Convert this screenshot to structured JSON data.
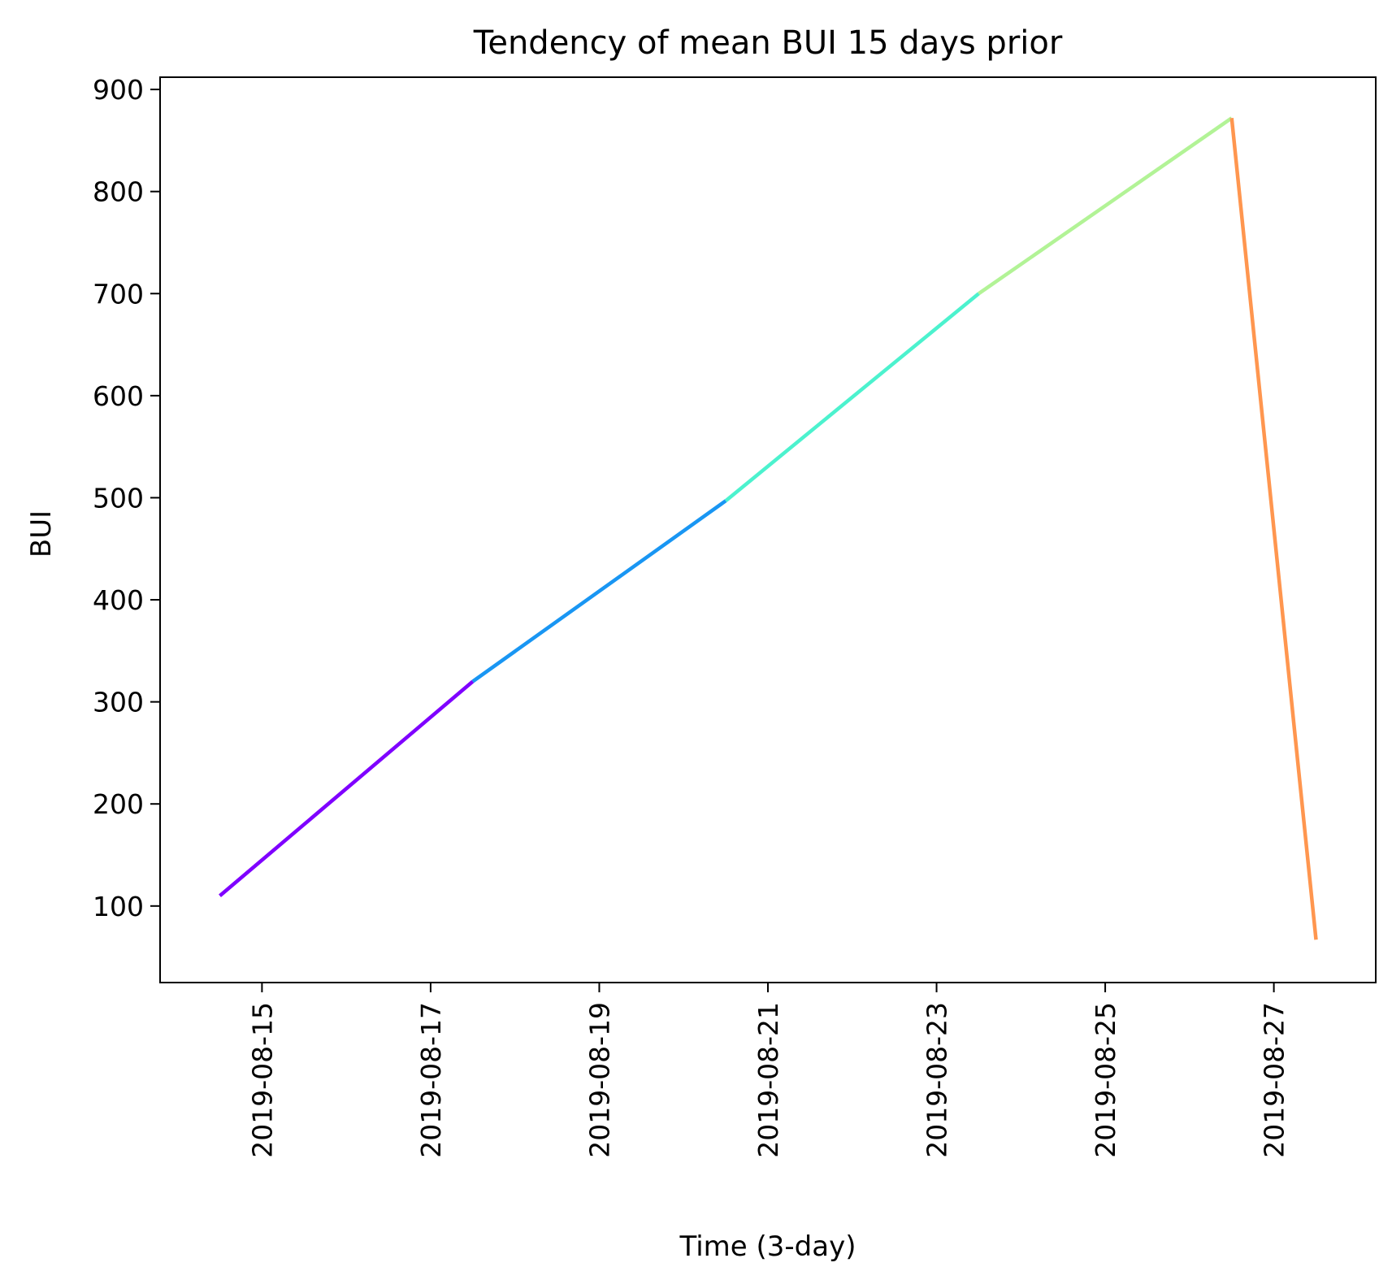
{
  "chart_data": {
    "type": "line",
    "title": "Tendency of mean BUI 15 days prior",
    "xlabel": "Time (3-day)",
    "ylabel": "BUI",
    "x_type": "date",
    "xlim": [
      "2019-08-13T19:00",
      "2019-08-28T05:00"
    ],
    "ylim": [
      25,
      912
    ],
    "x_ticks": [
      "2019-08-15",
      "2019-08-17",
      "2019-08-19",
      "2019-08-21",
      "2019-08-23",
      "2019-08-25",
      "2019-08-27"
    ],
    "y_ticks": [
      100,
      200,
      300,
      400,
      500,
      600,
      700,
      800,
      900
    ],
    "grid": false,
    "legend": "none",
    "series": [
      {
        "points": [
          {
            "x": "2019-08-14T12:00",
            "y": 110
          },
          {
            "x": "2019-08-17T12:00",
            "y": 320
          },
          {
            "x": "2019-08-20T12:00",
            "y": 497
          },
          {
            "x": "2019-08-23T12:00",
            "y": 700
          },
          {
            "x": "2019-08-26T12:00",
            "y": 872
          },
          {
            "x": "2019-08-27T12:00",
            "y": 67
          }
        ],
        "segment_colors": [
          "#7f00ff",
          "#1996f3",
          "#4cf2ce",
          "#b2f396",
          "#ff964f"
        ]
      }
    ]
  }
}
